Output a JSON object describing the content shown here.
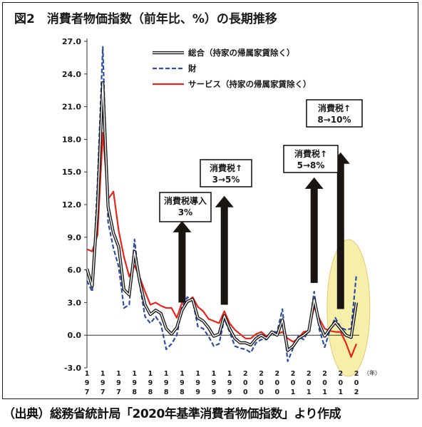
{
  "title": "図2　消費者物価指数（前年比、%）の長期推移",
  "source": "（出典）総務省統計局「2020年基準消費者物価指数」より作成",
  "colors": {
    "total": "#1a1a1a",
    "goods": "#2c4fa3",
    "services": "#e8241c",
    "highlight": "#f4eea0",
    "highlight_stroke": "#e8c060",
    "arrow": "#1a1510"
  },
  "chart_data": {
    "type": "line",
    "title": "図2　消費者物価指数（前年比、%）の長期推移",
    "xlabel": "（年）",
    "ylabel": "",
    "ylim": [
      -3.0,
      27.0
    ],
    "yticks": [
      "27.0",
      "24.0",
      "21.0",
      "18.0",
      "15.0",
      "12.0",
      "9.0",
      "6.0",
      "3.0",
      "0.0",
      "-3.0"
    ],
    "yticks_values": [
      27,
      24,
      21,
      18,
      15,
      12,
      9,
      6,
      3,
      0,
      -3
    ],
    "xlim": [
      1971,
      2022
    ],
    "xtick_labels": [
      {
        "year": 1971,
        "label": "1971"
      },
      {
        "year": 1974,
        "label": "1974"
      },
      {
        "year": 1977,
        "label": "1977"
      },
      {
        "year": 1980,
        "label": "1980"
      },
      {
        "year": 1983,
        "label": "1983"
      },
      {
        "year": 1986,
        "label": "1986"
      },
      {
        "year": 1989,
        "label": "1989"
      },
      {
        "year": 1992,
        "label": "1992"
      },
      {
        "year": 1995,
        "label": "1995"
      },
      {
        "year": 1998,
        "label": "1998"
      },
      {
        "year": 2001,
        "label": "2001"
      },
      {
        "year": 2004,
        "label": "2004"
      },
      {
        "year": 2007,
        "label": "2007"
      },
      {
        "year": 2010,
        "label": "2010"
      },
      {
        "year": 2013,
        "label": "2013"
      },
      {
        "year": 2016,
        "label": "2016"
      },
      {
        "year": 2019,
        "label": "2019"
      },
      {
        "year": 2022,
        "label": "2022"
      }
    ],
    "legend_position": "top-right",
    "grid": false,
    "x": [
      1971,
      1972,
      1973,
      1974,
      1975,
      1976,
      1977,
      1978,
      1979,
      1980,
      1981,
      1982,
      1983,
      1984,
      1985,
      1986,
      1987,
      1988,
      1989,
      1990,
      1991,
      1992,
      1993,
      1994,
      1995,
      1996,
      1997,
      1998,
      1999,
      2000,
      2001,
      2002,
      2003,
      2004,
      2005,
      2006,
      2007,
      2008,
      2009,
      2010,
      2011,
      2012,
      2013,
      2014,
      2015,
      2016,
      2017,
      2018,
      2019,
      2020,
      2021,
      2022
    ],
    "series": [
      {
        "name": "総合（持家の帰属家賃除く）",
        "style": "double-line",
        "values": [
          6.1,
          4.5,
          11.7,
          23.2,
          11.8,
          9.4,
          8.1,
          4.2,
          3.7,
          7.7,
          4.9,
          2.8,
          1.9,
          2.3,
          2.0,
          0.6,
          0.1,
          0.7,
          2.3,
          3.1,
          3.3,
          1.6,
          1.3,
          0.7,
          -0.1,
          0.1,
          1.8,
          0.6,
          -0.3,
          -0.7,
          -0.7,
          -0.9,
          -0.3,
          0.0,
          -0.3,
          0.3,
          0.0,
          1.4,
          -1.4,
          -1.0,
          -0.3,
          0.0,
          0.4,
          3.3,
          1.0,
          -0.1,
          0.6,
          1.2,
          0.6,
          0.0,
          -0.2,
          3.0
        ]
      },
      {
        "name": "財",
        "style": "dashed",
        "values": [
          5.0,
          4.0,
          14.0,
          26.5,
          10.4,
          8.0,
          6.3,
          2.5,
          2.8,
          8.8,
          4.6,
          1.7,
          1.1,
          1.7,
          1.0,
          -1.3,
          -0.8,
          0.0,
          2.6,
          3.5,
          3.2,
          0.8,
          0.6,
          -0.1,
          -1.0,
          -0.8,
          1.5,
          0.3,
          -1.0,
          -1.2,
          -1.3,
          -1.6,
          -0.7,
          -0.4,
          -0.4,
          0.3,
          0.3,
          2.4,
          -2.4,
          -1.2,
          -0.1,
          -0.4,
          0.5,
          4.0,
          0.5,
          -1.1,
          0.5,
          1.6,
          0.7,
          0.5,
          0.6,
          5.6
        ]
      },
      {
        "name": "サービス（持家の帰属家賃除く）",
        "style": "solid",
        "values": [
          7.9,
          7.7,
          9.2,
          18.6,
          12.5,
          13.2,
          9.6,
          7.2,
          5.4,
          6.4,
          5.3,
          4.0,
          2.8,
          3.0,
          2.7,
          2.5,
          2.5,
          1.6,
          3.0,
          3.0,
          3.5,
          2.6,
          2.2,
          1.5,
          1.3,
          1.1,
          2.2,
          1.1,
          0.5,
          0.1,
          -0.3,
          -0.3,
          0.1,
          0.3,
          -0.1,
          0.2,
          0.1,
          0.3,
          -0.3,
          -0.6,
          -0.3,
          0.3,
          0.4,
          2.6,
          1.5,
          0.6,
          0.4,
          0.3,
          0.3,
          -0.7,
          -2.0,
          -0.8
        ]
      }
    ]
  },
  "legend": {
    "total": "総合（持家の帰属家賃除く）",
    "goods": "財",
    "services": "サービス（持家の帰属家賃除く）"
  },
  "annotations": [
    {
      "line1": "消費税導入",
      "line2": "3%",
      "year": 1989
    },
    {
      "line1": "消費税↑",
      "line2": "3→5%",
      "year": 1997
    },
    {
      "line1": "消費税↑",
      "line2": "5→8%",
      "year": 2014
    },
    {
      "line1": "消費税↑",
      "line2": "8→10%",
      "year": 2019
    }
  ]
}
